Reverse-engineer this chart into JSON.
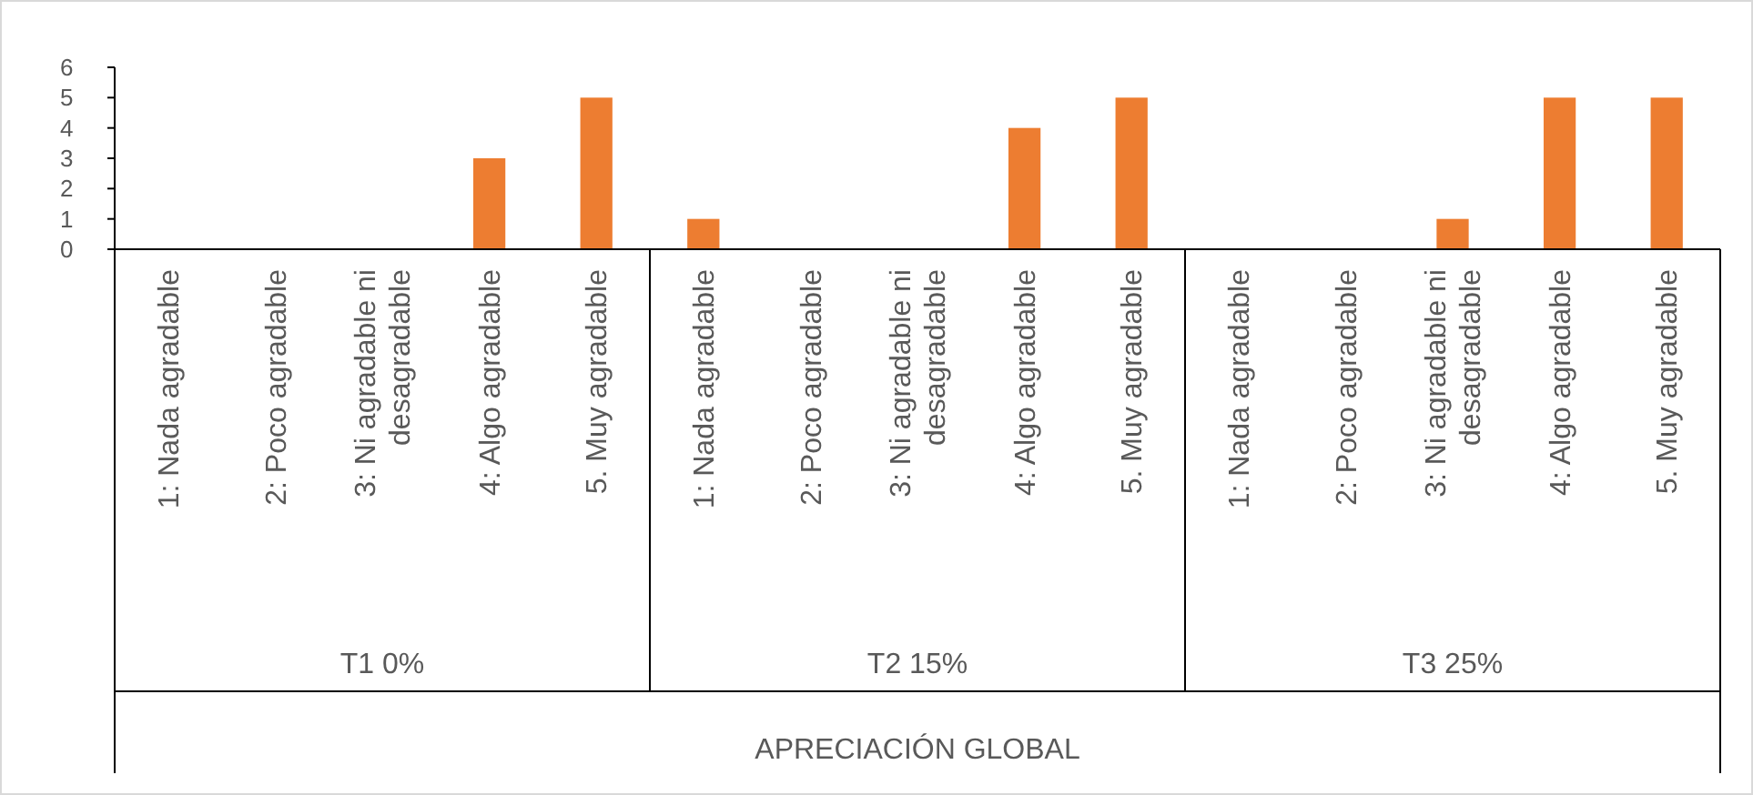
{
  "chart_data": {
    "type": "bar",
    "categories": [
      "1: Nada agradable",
      "2: Poco agradable",
      "3: Ni agradable ni desagradable",
      "4: Algo agradable",
      "5. Muy agradable",
      "1: Nada agradable",
      "2: Poco agradable",
      "3: Ni agradable ni desagradable",
      "4: Algo agradable",
      "5. Muy agradable",
      "1: Nada agradable",
      "2: Poco agradable",
      "3: Ni agradable ni desagradable",
      "4: Algo agradable",
      "5. Muy agradable"
    ],
    "values": [
      0,
      0,
      0,
      3,
      5,
      1,
      0,
      0,
      4,
      5,
      0,
      0,
      1,
      5,
      5
    ],
    "color": "#ed7d31",
    "ylim": [
      0,
      6
    ],
    "yticks": [
      0,
      1,
      2,
      3,
      4,
      5,
      6
    ],
    "annotations": [
      "T1 0%",
      "T2 15%",
      "T3 25%",
      "APRECIACIÓN GLOBAL"
    ]
  }
}
